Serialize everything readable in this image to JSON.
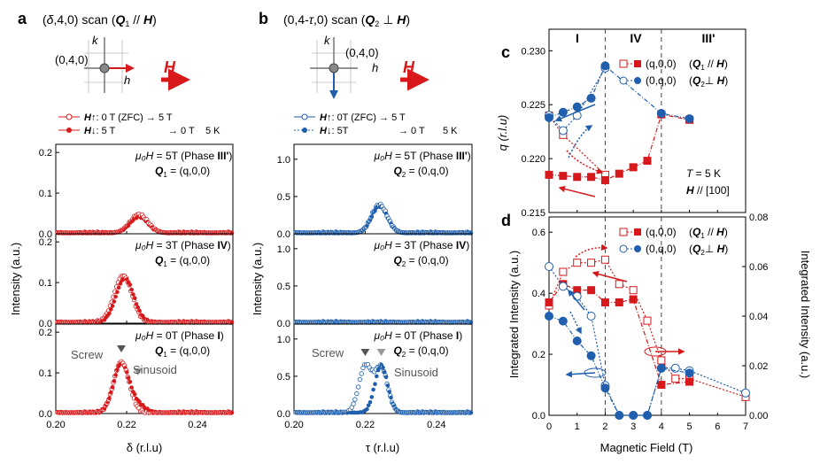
{
  "panel_labels": {
    "a": "a",
    "b": "b",
    "c": "c",
    "d": "d"
  },
  "colors": {
    "red": "#d7191c",
    "blue": "#1f5fad",
    "gray": "#555555",
    "dash": "#444444"
  },
  "panel_a": {
    "title": "(δ,4,0) scan (Q1 // H)",
    "title_parts": {
      "pre": "(",
      "delta": "δ",
      "mid": ",4,0) scan (",
      "q": "Q",
      "sub": "1",
      "par": " // ",
      "h": "H",
      ")": ")"
    },
    "inset": {
      "k": "k",
      "h": "h",
      "point": "(0,4,0)",
      "field": "H"
    },
    "legend": [
      {
        "arrow": "↑",
        "text": ": 0 T (ZFC) → 5 T",
        "filled": false
      },
      {
        "arrow": "↓",
        "text": ": 5 T",
        "text2": "→ 0 T",
        "temp": "5 K",
        "filled": true
      }
    ],
    "xlabel": "δ (r.l.u)",
    "ylabel": "Intensity (a.u.)",
    "xticks": [
      "0.20",
      "0.22",
      "0.24"
    ],
    "sub": [
      {
        "field": "= 5T (Phase",
        "phase": "III'",
        "q": "= (q,0,0)",
        "yticks": [
          "0.0",
          "0.1",
          "0.2"
        ]
      },
      {
        "field": "= 3T (Phase",
        "phase": "IV",
        "q": "= (q,0,0)",
        "yticks": [
          "0.0",
          "0.1",
          "0.2"
        ]
      },
      {
        "field": "= 0T (Phase",
        "phase": "I",
        "q": "= (q,0,0)",
        "yticks": [
          "0.0",
          "0.1",
          "0.2"
        ]
      }
    ],
    "labels": {
      "screw": "Screw",
      "sinusoid": "Sinusoid",
      "mu": "μ₀H",
      "Q": "Q",
      "Qsub": "1"
    }
  },
  "panel_b": {
    "title": "(0,4-τ,0) scan (Q2 ⊥ H)",
    "title_parts": {
      "pre": "(0,4-",
      "tau": "τ",
      "mid": ",0) scan (",
      "q": "Q",
      "sub": "2",
      "perp": " ⊥ ",
      "h": "H",
      ")": ")"
    },
    "inset": {
      "k": "k",
      "h": "h",
      "point": "(0,4,0)",
      "field": "H"
    },
    "legend": [
      {
        "arrow": "↑",
        "text": ": 0T (ZFC) → 5 T",
        "filled": false
      },
      {
        "arrow": "↓",
        "text": ": 5T",
        "text2": "→ 0 T",
        "temp": "5 K",
        "filled": true
      }
    ],
    "xlabel": "τ (r.l.u)",
    "ylabel": "Intensity (a.u.)",
    "xticks": [
      "0.20",
      "0.22",
      "0.24"
    ],
    "sub": [
      {
        "field": "= 5T (Phase",
        "phase": "III'",
        "q": "= (0,q,0)",
        "yticks": [
          "0.0",
          "0.5",
          "1.0"
        ]
      },
      {
        "field": "= 3T (Phase",
        "phase": "IV",
        "q": "= (0,q,0)",
        "yticks": [
          "0.0",
          "0.5",
          "1.0"
        ]
      },
      {
        "field": "= 0T (Phase",
        "phase": "I",
        "q": "= (0,q,0)",
        "yticks": [
          "0.0",
          "0.5",
          "1.0"
        ]
      }
    ],
    "labels": {
      "screw": "Screw",
      "sinusoid": "Sinusoid",
      "mu": "μ₀H",
      "Q": "Q",
      "Qsub": "2"
    }
  },
  "phases": [
    "I",
    "IV",
    "III'"
  ],
  "panel_c": {
    "ylabel": "q (r.l.u)",
    "yticks": [
      "0.215",
      "0.220",
      "0.225",
      "0.230"
    ],
    "legend": [
      {
        "text": "(q,0,0)",
        "tag": "Q1 // H"
      },
      {
        "text": "(0,q,0)",
        "tag": "Q2 ⊥ H"
      }
    ],
    "legend_tags": [
      {
        "q": "Q",
        "sub": "1",
        "rel": " // ",
        "h": "H"
      },
      {
        "q": "Q",
        "sub": "2",
        "rel": "⊥ ",
        "h": "H"
      }
    ],
    "temp": "T = 5 K",
    "dir": "H // [100]",
    "tparts": {
      "t": "T",
      "eq": " = 5 K",
      "h": "H",
      "rest": " // [100]"
    }
  },
  "panel_d": {
    "ylabel_left": "Integrated Intensity (a.u.)",
    "ylabel_right": "Integrated Intensity (a.u.)",
    "yticks_left": [
      "0.0",
      "0.2",
      "0.4",
      "0.6"
    ],
    "yticks_right": [
      "0.00",
      "0.02",
      "0.04",
      "0.06",
      "0.08"
    ],
    "xticks": [
      "0",
      "1",
      "2",
      "3",
      "4",
      "5",
      "6",
      "7"
    ],
    "xlabel": "Magnetic Field (T)",
    "legend": [
      {
        "text": "(q,0,0)",
        "tag": "Q1 // H"
      },
      {
        "text": "(0,q,0)",
        "tag": "Q2 ⊥ H"
      }
    ]
  },
  "chart_data": [
    {
      "type": "scatter",
      "title": "(δ,4,0) scan, μ0H = 5T (Phase III')",
      "xlabel": "δ (r.l.u)",
      "ylabel": "Intensity (a.u.)",
      "xlim": [
        0.2,
        0.25
      ],
      "ylim": [
        0,
        0.22
      ],
      "series": [
        {
          "name": "H↑ (ZFC→5T)",
          "filled": false,
          "peaks": [
            {
              "center": 0.2235,
              "amp": 0.045,
              "width": 0.0025
            }
          ]
        },
        {
          "name": "H↓ (5T→0T)",
          "filled": true,
          "peaks": [
            {
              "center": 0.2235,
              "amp": 0.04,
              "width": 0.0025
            }
          ]
        }
      ]
    },
    {
      "type": "scatter",
      "title": "(δ,4,0) scan, μ0H = 3T (Phase IV)",
      "xlabel": "δ (r.l.u)",
      "ylabel": "Intensity (a.u.)",
      "xlim": [
        0.2,
        0.25
      ],
      "ylim": [
        0,
        0.22
      ],
      "series": [
        {
          "name": "H↑ (ZFC→5T)",
          "filled": false,
          "peaks": [
            {
              "center": 0.219,
              "amp": 0.115,
              "width": 0.0025
            }
          ]
        },
        {
          "name": "H↓ (5T→0T)",
          "filled": true,
          "peaks": [
            {
              "center": 0.2195,
              "amp": 0.108,
              "width": 0.0025
            }
          ]
        }
      ]
    },
    {
      "type": "scatter",
      "title": "(δ,4,0) scan, μ0H = 0T (Phase I)",
      "xlabel": "δ (r.l.u)",
      "ylabel": "Intensity (a.u.)",
      "xlim": [
        0.2,
        0.25
      ],
      "ylim": [
        0,
        0.22
      ],
      "series": [
        {
          "name": "H↑ (ZFC→5T)",
          "filled": false,
          "peaks": [
            {
              "center": 0.2185,
              "amp": 0.125,
              "width": 0.0022
            }
          ]
        },
        {
          "name": "H↓ (5T→0T)",
          "filled": true,
          "peaks": [
            {
              "center": 0.2185,
              "amp": 0.12,
              "width": 0.0022
            },
            {
              "center": 0.2232,
              "amp": 0.018,
              "width": 0.002
            }
          ]
        }
      ]
    },
    {
      "type": "scatter",
      "title": "(0,4-τ,0) scan, μ0H = 5T (Phase III')",
      "xlabel": "τ (r.l.u)",
      "ylabel": "Intensity (a.u.)",
      "xlim": [
        0.2,
        0.25
      ],
      "ylim": [
        0,
        1.2
      ],
      "series": [
        {
          "name": "H↑ (ZFC→5T)",
          "filled": false,
          "peaks": [
            {
              "center": 0.224,
              "amp": 0.38,
              "width": 0.0022
            }
          ]
        },
        {
          "name": "H↓ (5T→0T)",
          "filled": true,
          "peaks": [
            {
              "center": 0.224,
              "amp": 0.36,
              "width": 0.0022
            }
          ]
        }
      ]
    },
    {
      "type": "scatter",
      "title": "(0,4-τ,0) scan, μ0H = 3T (Phase IV)",
      "xlabel": "τ (r.l.u)",
      "ylabel": "Intensity (a.u.)",
      "xlim": [
        0.2,
        0.25
      ],
      "ylim": [
        0,
        1.2
      ],
      "series": [
        {
          "name": "H↑ (ZFC→5T)",
          "filled": false,
          "peaks": []
        },
        {
          "name": "H↓ (5T→0T)",
          "filled": true,
          "peaks": []
        }
      ]
    },
    {
      "type": "scatter",
      "title": "(0,4-τ,0) scan, μ0H = 0T (Phase I)",
      "xlabel": "τ (r.l.u)",
      "ylabel": "Intensity (a.u.)",
      "xlim": [
        0.2,
        0.25
      ],
      "ylim": [
        0,
        1.2
      ],
      "series": [
        {
          "name": "H↑ (ZFC→5T)",
          "filled": false,
          "peaks": [
            {
              "center": 0.22,
              "amp": 0.62,
              "width": 0.0018
            },
            {
              "center": 0.2245,
              "amp": 0.6,
              "width": 0.0018
            }
          ]
        },
        {
          "name": "H↓ (5T→0T)",
          "filled": true,
          "peaks": [
            {
              "center": 0.2245,
              "amp": 0.63,
              "width": 0.0018
            }
          ]
        }
      ]
    },
    {
      "type": "line",
      "title": "q vs field",
      "xlabel": "Magnetic Field (T)",
      "ylabel": "q (r.l.u)",
      "xlim": [
        0,
        7
      ],
      "ylim": [
        0.215,
        0.232
      ],
      "series": [
        {
          "name": "(q,0,0) H↑",
          "filled": false,
          "color": "red",
          "style": "dotted",
          "x": [
            0,
            0.5,
            2
          ],
          "y": [
            0.224,
            0.2222,
            0.2185
          ]
        },
        {
          "name": "(q,0,0) H↓",
          "filled": true,
          "color": "red",
          "style": "dashdot",
          "x": [
            0,
            0.5,
            1,
            1.5,
            2,
            2.5,
            3,
            3.5,
            4,
            5
          ],
          "y": [
            0.2185,
            0.2184,
            0.2183,
            0.2183,
            0.218,
            0.2186,
            0.2192,
            0.2198,
            0.2241,
            0.2236
          ]
        },
        {
          "name": "(0,q,0) H↑",
          "filled": false,
          "color": "blue",
          "style": "dotted",
          "x": [
            0,
            0.5,
            1,
            2
          ],
          "y": [
            0.224,
            0.2226,
            0.224,
            0.2284
          ]
        },
        {
          "name": "(0,q,0) H↓",
          "filled": true,
          "color": "blue",
          "style": "dashdot",
          "x": [
            0,
            0.5,
            1,
            1.5,
            2,
            4,
            5
          ],
          "y": [
            0.2238,
            0.2243,
            0.2248,
            0.2256,
            0.2286,
            0.2242,
            0.2237
          ]
        }
      ]
    },
    {
      "type": "line",
      "title": "Integrated intensity vs field",
      "xlabel": "Magnetic Field (T)",
      "ylabel": "Integrated Intensity (a.u.)",
      "xlim": [
        0,
        7
      ],
      "ylim": [
        0,
        0.65
      ],
      "y2lim": [
        0,
        0.08
      ],
      "series": [
        {
          "name": "(q,0,0) H↑",
          "axis": "left",
          "filled": false,
          "x": [
            0,
            0.5,
            1,
            1.5,
            2,
            2.5,
            3,
            3.5,
            4,
            4.5,
            5,
            7
          ],
          "y": [
            0.36,
            0.47,
            0.5,
            0.5,
            0.51,
            0.43,
            0.41,
            0.31,
            0.18,
            0.12,
            0.12,
            0.06
          ]
        },
        {
          "name": "(q,0,0) H↓",
          "axis": "left",
          "filled": true,
          "x": [
            0,
            0.5,
            1,
            1.5,
            2,
            2.5,
            3,
            4,
            5
          ],
          "y": [
            0.37,
            0.43,
            0.41,
            0.41,
            0.37,
            0.37,
            0.38,
            0.1,
            0.11
          ]
        },
        {
          "name": "(0,q,0) H↑",
          "axis": "right",
          "filled": false,
          "x": [
            0,
            0.5,
            1,
            1.5,
            2,
            2.5,
            3,
            3.5,
            4,
            4.5,
            5,
            7
          ],
          "y": [
            0.06,
            0.052,
            0.048,
            0.04,
            0.012,
            0,
            0,
            0,
            0.019,
            0.019,
            0.018,
            0.009
          ]
        },
        {
          "name": "(0,q,0) H↓",
          "axis": "right",
          "filled": true,
          "x": [
            0,
            0.5,
            1,
            1.5,
            2,
            2.5,
            3,
            3.5,
            4,
            5
          ],
          "y": [
            0.04,
            0.038,
            0.03,
            0.024,
            0.011,
            0,
            0,
            0,
            0.019,
            0.017
          ]
        }
      ]
    }
  ]
}
